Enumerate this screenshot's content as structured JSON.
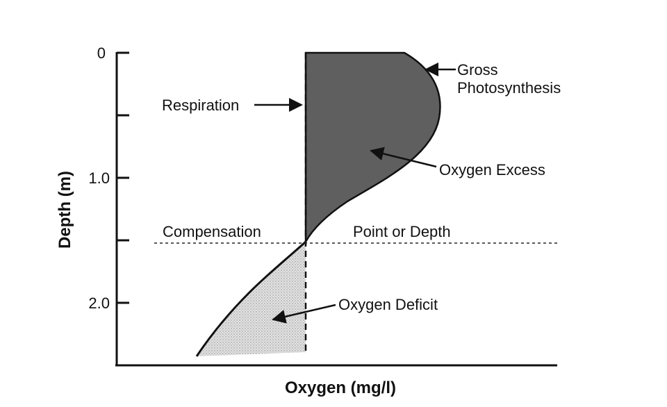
{
  "axes": {
    "x_title": "Oxygen (mg/l)",
    "y_title": "Depth (m)",
    "y_ticks": [
      {
        "value": 0,
        "label": "0"
      },
      {
        "value": 0.5,
        "label": ""
      },
      {
        "value": 1.0,
        "label": "1.0"
      },
      {
        "value": 1.5,
        "label": ""
      },
      {
        "value": 2.0,
        "label": "2.0"
      }
    ],
    "y_range": [
      0,
      2.5
    ]
  },
  "annotations": {
    "respiration": "Respiration",
    "gross_line1": "Gross",
    "gross_line2": "Photosynthesis",
    "excess": "Oxygen Excess",
    "deficit": "Oxygen Deficit",
    "compensation_left": "Compensation",
    "compensation_right": "Point or Depth"
  },
  "colors": {
    "excess_fill": "#5f5f5f",
    "deficit_fill": "#d9d9d9",
    "ink": "#111111"
  }
}
